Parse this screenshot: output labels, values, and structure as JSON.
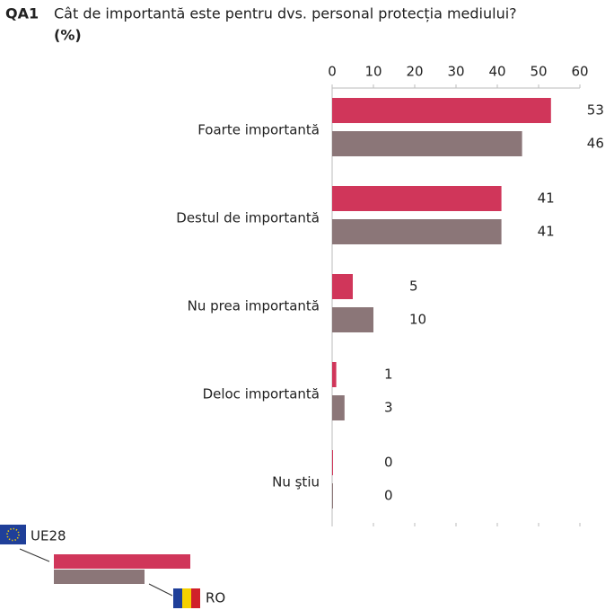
{
  "chart_data": {
    "type": "hbar",
    "code": "QA1",
    "title": "Cât de importantă este pentru dvs. personal protecția mediului?",
    "subtitle": "(%)",
    "categories": [
      "Foarte importantă",
      "Destul de importantă",
      "Nu prea importantă",
      "Deloc importantă",
      "Nu ştiu"
    ],
    "series": [
      {
        "name": "UE28",
        "color": "#d0365a",
        "values": [
          53,
          41,
          5,
          1,
          0
        ]
      },
      {
        "name": "RO",
        "color": "#8b7678",
        "values": [
          46,
          41,
          10,
          3,
          0
        ]
      }
    ],
    "xlim": [
      0,
      60
    ],
    "xticks": [
      0,
      10,
      20,
      30,
      40,
      50,
      60
    ]
  }
}
